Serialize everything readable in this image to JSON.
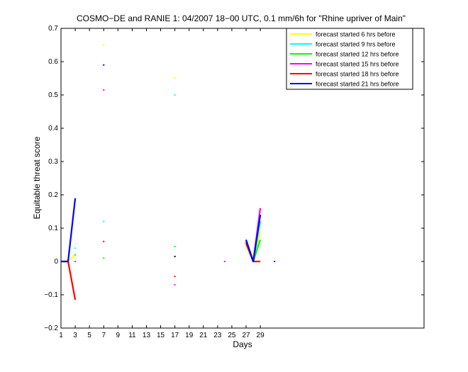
{
  "chart_data": {
    "type": "line",
    "title": "COSMO−DE and RANIE 1: 04/2007 18−00 UTC, 0.1 mm/6h for \"Rhine upriver of Main\"",
    "xlabel": "Days",
    "ylabel": "Equitable threat score",
    "xlim": [
      1,
      52
    ],
    "ylim": [
      -0.2,
      0.7
    ],
    "xticks": [
      1,
      3,
      5,
      7,
      9,
      11,
      13,
      15,
      17,
      19,
      21,
      23,
      25,
      27,
      29
    ],
    "yticks": [
      -0.2,
      -0.1,
      0,
      0.1,
      0.2,
      0.3,
      0.4,
      0.5,
      0.6,
      0.7
    ],
    "ytick_labels": [
      "−0.2",
      "−0.1",
      "0",
      "0.1",
      "0.2",
      "0.3",
      "0.4",
      "0.5",
      "0.6",
      "0.7"
    ],
    "grid": false,
    "legend_position": "top-right",
    "series": [
      {
        "name": "forecast started 6 hrs before",
        "color": "#ffff00",
        "segments": [
          [
            [
              1,
              0
            ],
            [
              2,
              0
            ],
            [
              3,
              0.02
            ]
          ],
          [
            [
              27,
              0.05
            ],
            [
              28,
              0
            ],
            [
              29,
              0.09
            ]
          ]
        ],
        "points": [
          [
            7,
            0.65
          ],
          [
            17,
            0.55
          ]
        ]
      },
      {
        "name": "forecast started 9 hrs before",
        "color": "#00ffff",
        "segments": [
          [
            [
              27,
              0.06
            ],
            [
              28,
              0
            ],
            [
              29,
              0.12
            ]
          ]
        ],
        "points": [
          [
            3,
            0.04
          ],
          [
            7,
            0.12
          ],
          [
            17,
            0.5
          ]
        ]
      },
      {
        "name": "forecast started 12 hrs before",
        "color": "#00ff00",
        "segments": [
          [
            [
              27,
              0.065
            ],
            [
              28,
              0
            ],
            [
              29,
              0.065
            ]
          ]
        ],
        "points": [
          [
            3,
            0.02
          ],
          [
            7,
            0.01
          ],
          [
            17,
            0.045
          ]
        ]
      },
      {
        "name": "forecast started 15 hrs before",
        "color": "#ff00ff",
        "segments": [
          [
            [
              27,
              0.06
            ],
            [
              28,
              0
            ],
            [
              29,
              0.16
            ]
          ]
        ],
        "points": [
          [
            3,
            0
          ],
          [
            7,
            0.515
          ],
          [
            17,
            -0.07
          ],
          [
            24,
            0
          ]
        ]
      },
      {
        "name": "forecast started 18 hrs before",
        "color": "#ff0000",
        "segments": [
          [
            [
              1,
              0
            ],
            [
              2,
              0
            ],
            [
              3,
              -0.115
            ]
          ],
          [
            [
              27,
              0.055
            ],
            [
              28,
              0
            ],
            [
              29,
              0
            ]
          ]
        ],
        "points": [
          [
            7,
            0.06
          ],
          [
            17,
            -0.045
          ]
        ]
      },
      {
        "name": "forecast started 21 hrs before",
        "color": "#0000ff",
        "segments": [
          [
            [
              1,
              0
            ],
            [
              2,
              0
            ],
            [
              3,
              0.19
            ]
          ],
          [
            [
              27,
              0.065
            ],
            [
              28,
              0
            ],
            [
              29,
              0.14
            ]
          ]
        ],
        "points": [
          [
            7,
            0.59
          ],
          [
            31,
            0
          ]
        ]
      }
    ],
    "extra_points": [
      {
        "color": "#000000",
        "x": 17,
        "y": 0.015
      }
    ]
  }
}
